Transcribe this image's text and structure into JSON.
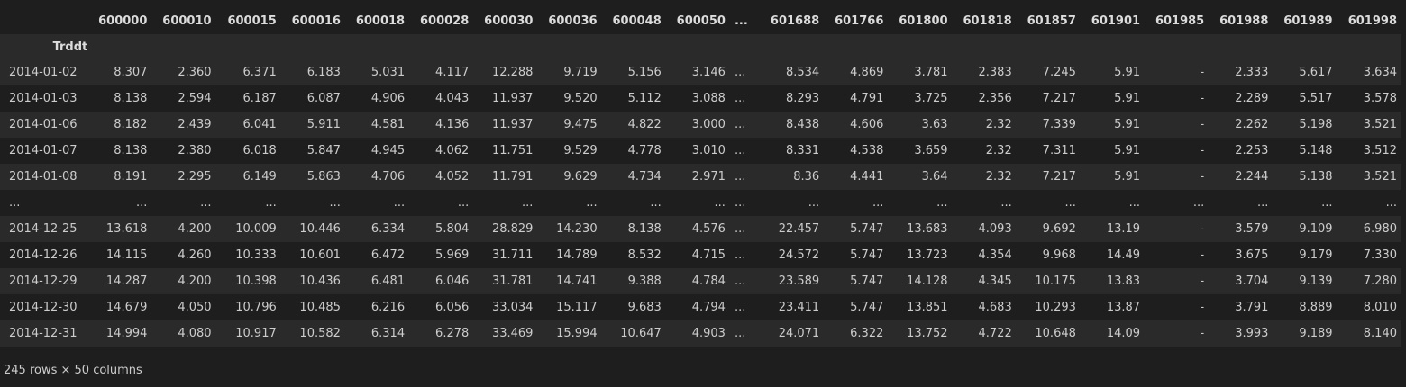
{
  "table": {
    "index_name": "Trddt",
    "columns": [
      "600000",
      "600010",
      "600015",
      "600016",
      "600018",
      "600028",
      "600030",
      "600036",
      "600048",
      "600050",
      "...",
      "601688",
      "601766",
      "601800",
      "601818",
      "601857",
      "601901",
      "601985",
      "601988",
      "601989",
      "601998"
    ],
    "rows": [
      {
        "index": "2014-01-02",
        "cells": [
          "8.307",
          "2.360",
          "6.371",
          "6.183",
          "5.031",
          "4.117",
          "12.288",
          "9.719",
          "5.156",
          "3.146",
          "...",
          "8.534",
          "4.869",
          "3.781",
          "2.383",
          "7.245",
          "5.91",
          "-",
          "2.333",
          "5.617",
          "3.634"
        ]
      },
      {
        "index": "2014-01-03",
        "cells": [
          "8.138",
          "2.594",
          "6.187",
          "6.087",
          "4.906",
          "4.043",
          "11.937",
          "9.520",
          "5.112",
          "3.088",
          "...",
          "8.293",
          "4.791",
          "3.725",
          "2.356",
          "7.217",
          "5.91",
          "-",
          "2.289",
          "5.517",
          "3.578"
        ]
      },
      {
        "index": "2014-01-06",
        "cells": [
          "8.182",
          "2.439",
          "6.041",
          "5.911",
          "4.581",
          "4.136",
          "11.937",
          "9.475",
          "4.822",
          "3.000",
          "...",
          "8.438",
          "4.606",
          "3.63",
          "2.32",
          "7.339",
          "5.91",
          "-",
          "2.262",
          "5.198",
          "3.521"
        ]
      },
      {
        "index": "2014-01-07",
        "cells": [
          "8.138",
          "2.380",
          "6.018",
          "5.847",
          "4.945",
          "4.062",
          "11.751",
          "9.529",
          "4.778",
          "3.010",
          "...",
          "8.331",
          "4.538",
          "3.659",
          "2.32",
          "7.311",
          "5.91",
          "-",
          "2.253",
          "5.148",
          "3.512"
        ]
      },
      {
        "index": "2014-01-08",
        "cells": [
          "8.191",
          "2.295",
          "6.149",
          "5.863",
          "4.706",
          "4.052",
          "11.791",
          "9.629",
          "4.734",
          "2.971",
          "...",
          "8.36",
          "4.441",
          "3.64",
          "2.32",
          "7.217",
          "5.91",
          "-",
          "2.244",
          "5.138",
          "3.521"
        ]
      },
      {
        "index": "...",
        "cells": [
          "...",
          "...",
          "...",
          "...",
          "...",
          "...",
          "...",
          "...",
          "...",
          "...",
          "...",
          "...",
          "...",
          "...",
          "...",
          "...",
          "...",
          "...",
          "...",
          "...",
          "..."
        ]
      },
      {
        "index": "2014-12-25",
        "cells": [
          "13.618",
          "4.200",
          "10.009",
          "10.446",
          "6.334",
          "5.804",
          "28.829",
          "14.230",
          "8.138",
          "4.576",
          "...",
          "22.457",
          "5.747",
          "13.683",
          "4.093",
          "9.692",
          "13.19",
          "-",
          "3.579",
          "9.109",
          "6.980"
        ]
      },
      {
        "index": "2014-12-26",
        "cells": [
          "14.115",
          "4.260",
          "10.333",
          "10.601",
          "6.472",
          "5.969",
          "31.711",
          "14.789",
          "8.532",
          "4.715",
          "...",
          "24.572",
          "5.747",
          "13.723",
          "4.354",
          "9.968",
          "14.49",
          "-",
          "3.675",
          "9.179",
          "7.330"
        ]
      },
      {
        "index": "2014-12-29",
        "cells": [
          "14.287",
          "4.200",
          "10.398",
          "10.436",
          "6.481",
          "6.046",
          "31.781",
          "14.741",
          "9.388",
          "4.784",
          "...",
          "23.589",
          "5.747",
          "14.128",
          "4.345",
          "10.175",
          "13.83",
          "-",
          "3.704",
          "9.139",
          "7.280"
        ]
      },
      {
        "index": "2014-12-30",
        "cells": [
          "14.679",
          "4.050",
          "10.796",
          "10.485",
          "6.216",
          "6.056",
          "33.034",
          "15.117",
          "9.683",
          "4.794",
          "...",
          "23.411",
          "5.747",
          "13.851",
          "4.683",
          "10.293",
          "13.87",
          "-",
          "3.791",
          "8.889",
          "8.010"
        ]
      },
      {
        "index": "2014-12-31",
        "cells": [
          "14.994",
          "4.080",
          "10.917",
          "10.582",
          "6.314",
          "6.278",
          "33.469",
          "15.994",
          "10.647",
          "4.903",
          "...",
          "24.071",
          "6.322",
          "13.752",
          "4.722",
          "10.648",
          "14.09",
          "-",
          "3.993",
          "9.189",
          "8.140"
        ]
      }
    ],
    "shape_text": "245 rows × 50 columns"
  }
}
